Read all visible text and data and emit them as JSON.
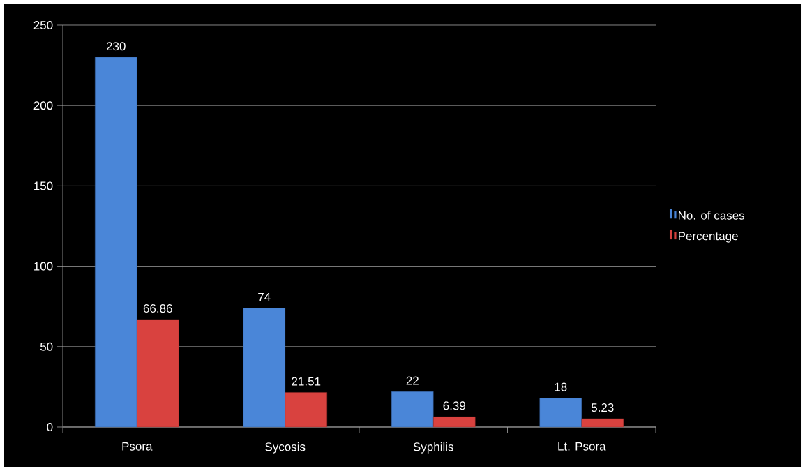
{
  "chart_data": {
    "type": "bar",
    "categories": [
      "Psora",
      "Sycosis",
      "Syphilis",
      "Lt. Psora"
    ],
    "series": [
      {
        "name": "No. of cases",
        "color": "#4a86d8",
        "values": [
          230,
          74,
          22,
          18
        ],
        "value_labels": [
          "230",
          "74",
          "22",
          "18"
        ]
      },
      {
        "name": "Percentage",
        "color": "#d9423f",
        "values": [
          66.86,
          21.51,
          6.39,
          5.23
        ],
        "value_labels": [
          "66.86",
          "21.51",
          "6.39",
          "5.23"
        ]
      }
    ],
    "ylim": [
      0,
      250
    ],
    "yticks": [
      0,
      50,
      100,
      150,
      200,
      250
    ],
    "grid": "y",
    "legend": "right"
  }
}
